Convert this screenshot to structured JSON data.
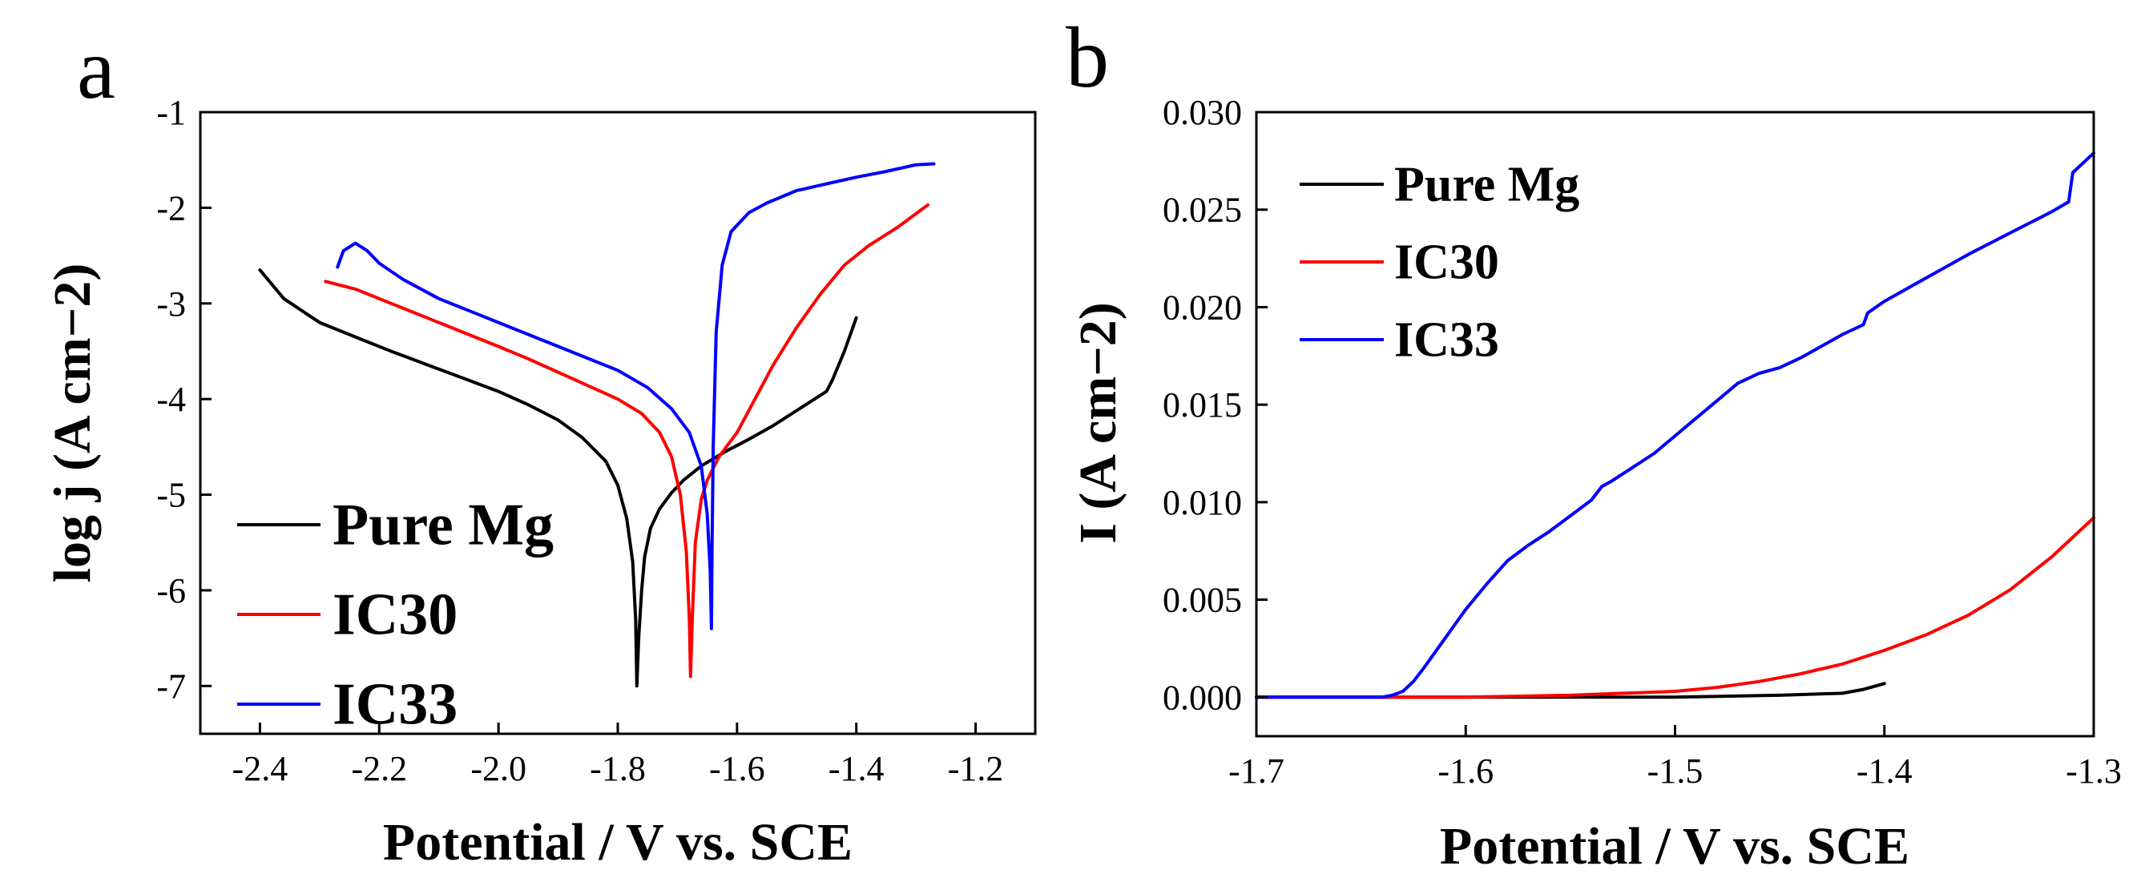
{
  "chart_data": [
    {
      "type": "line",
      "panel_label": "a",
      "xlabel": "Potential / V vs. SCE",
      "ylabel": "log j (A cm−2)",
      "xlim": [
        -2.5,
        -1.1
      ],
      "ylim": [
        -7.5,
        -1
      ],
      "xticks": [
        "-2.4",
        "-2.2",
        "-2.0",
        "-1.8",
        "-1.6",
        "-1.4",
        "-1.2"
      ],
      "yticks": [
        "-1",
        "-2",
        "-3",
        "-4",
        "-5",
        "-6",
        "-7"
      ],
      "legend_position": "bottom-left",
      "series": [
        {
          "name": "Pure Mg",
          "color": "#000000",
          "x": [
            -2.4,
            -2.36,
            -2.3,
            -2.24,
            -2.18,
            -2.12,
            -2.06,
            -2.0,
            -1.95,
            -1.9,
            -1.86,
            -1.82,
            -1.8,
            -1.785,
            -1.775,
            -1.77,
            -1.768,
            -1.765,
            -1.76,
            -1.755,
            -1.745,
            -1.73,
            -1.71,
            -1.69,
            -1.66,
            -1.62,
            -1.58,
            -1.54,
            -1.5,
            -1.45,
            -1.44,
            -1.42,
            -1.4
          ],
          "y": [
            -2.65,
            -2.95,
            -3.2,
            -3.35,
            -3.5,
            -3.64,
            -3.78,
            -3.92,
            -4.06,
            -4.22,
            -4.4,
            -4.65,
            -4.9,
            -5.25,
            -5.7,
            -6.3,
            -7.0,
            -6.5,
            -6.0,
            -5.65,
            -5.35,
            -5.15,
            -4.98,
            -4.85,
            -4.7,
            -4.55,
            -4.42,
            -4.28,
            -4.12,
            -3.92,
            -3.8,
            -3.5,
            -3.15
          ]
        },
        {
          "name": "IC30",
          "color": "#ff0000",
          "x": [
            -2.29,
            -2.24,
            -2.18,
            -2.12,
            -2.06,
            -2.0,
            -1.95,
            -1.9,
            -1.85,
            -1.8,
            -1.76,
            -1.73,
            -1.71,
            -1.695,
            -1.685,
            -1.68,
            -1.678,
            -1.675,
            -1.67,
            -1.66,
            -1.65,
            -1.63,
            -1.6,
            -1.57,
            -1.54,
            -1.5,
            -1.46,
            -1.42,
            -1.38,
            -1.33,
            -1.28
          ],
          "y": [
            -2.77,
            -2.85,
            -3.0,
            -3.15,
            -3.3,
            -3.45,
            -3.58,
            -3.72,
            -3.86,
            -4.0,
            -4.15,
            -4.35,
            -4.6,
            -5.0,
            -5.6,
            -6.3,
            -6.9,
            -6.3,
            -5.5,
            -5.05,
            -4.85,
            -4.6,
            -4.35,
            -4.0,
            -3.65,
            -3.25,
            -2.9,
            -2.6,
            -2.4,
            -2.2,
            -1.97
          ]
        },
        {
          "name": "IC33",
          "color": "#0000ff",
          "x": [
            -2.27,
            -2.26,
            -2.24,
            -2.22,
            -2.2,
            -2.16,
            -2.1,
            -2.04,
            -1.98,
            -1.92,
            -1.86,
            -1.8,
            -1.75,
            -1.71,
            -1.68,
            -1.66,
            -1.65,
            -1.645,
            -1.643,
            -1.642,
            -1.64,
            -1.635,
            -1.625,
            -1.61,
            -1.58,
            -1.55,
            -1.5,
            -1.45,
            -1.4,
            -1.35,
            -1.3,
            -1.27
          ],
          "y": [
            -2.62,
            -2.45,
            -2.37,
            -2.45,
            -2.58,
            -2.75,
            -2.95,
            -3.1,
            -3.25,
            -3.4,
            -3.55,
            -3.7,
            -3.88,
            -4.1,
            -4.35,
            -4.7,
            -5.2,
            -5.8,
            -6.4,
            -5.6,
            -4.5,
            -3.3,
            -2.6,
            -2.25,
            -2.05,
            -1.95,
            -1.82,
            -1.75,
            -1.68,
            -1.62,
            -1.55,
            -1.54
          ]
        }
      ]
    },
    {
      "type": "line",
      "panel_label": "b",
      "xlabel": "Potential / V vs. SCE",
      "ylabel": "I (A cm−2)",
      "xlim": [
        -1.7,
        -1.3
      ],
      "ylim": [
        -0.002,
        0.03
      ],
      "xticks": [
        "-1.7",
        "-1.6",
        "-1.5",
        "-1.4",
        "-1.3"
      ],
      "yticks": [
        "0.000",
        "0.005",
        "0.010",
        "0.015",
        "0.020",
        "0.025",
        "0.030"
      ],
      "legend_position": "top-left",
      "series": [
        {
          "name": "Pure Mg",
          "color": "#000000",
          "x": [
            -1.7,
            -1.65,
            -1.6,
            -1.55,
            -1.5,
            -1.45,
            -1.42,
            -1.41,
            -1.4
          ],
          "y": [
            0.0,
            0.0,
            0.0,
            0.0,
            0.0,
            0.0001,
            0.0002,
            0.0004,
            0.0007
          ]
        },
        {
          "name": "IC30",
          "color": "#ff0000",
          "x": [
            -1.7,
            -1.6,
            -1.55,
            -1.5,
            -1.48,
            -1.46,
            -1.44,
            -1.42,
            -1.4,
            -1.38,
            -1.36,
            -1.34,
            -1.32,
            -1.3
          ],
          "y": [
            0.0,
            0.0,
            0.0001,
            0.0003,
            0.0005,
            0.0008,
            0.0012,
            0.0017,
            0.0024,
            0.0032,
            0.0042,
            0.0055,
            0.0072,
            0.0092
          ]
        },
        {
          "name": "IC33",
          "color": "#0000ff",
          "x": [
            -1.7,
            -1.64,
            -1.635,
            -1.63,
            -1.625,
            -1.62,
            -1.61,
            -1.6,
            -1.59,
            -1.58,
            -1.57,
            -1.56,
            -1.55,
            -1.54,
            -1.535,
            -1.53,
            -1.52,
            -1.51,
            -1.5,
            -1.49,
            -1.48,
            -1.47,
            -1.46,
            -1.45,
            -1.44,
            -1.43,
            -1.42,
            -1.41,
            -1.408,
            -1.4,
            -1.38,
            -1.36,
            -1.34,
            -1.32,
            -1.312,
            -1.31,
            -1.3
          ],
          "y": [
            0.0,
            0.0,
            0.0001,
            0.0003,
            0.0008,
            0.0015,
            0.003,
            0.0045,
            0.0058,
            0.007,
            0.0078,
            0.0085,
            0.0093,
            0.0101,
            0.0108,
            0.0111,
            0.0118,
            0.0125,
            0.0134,
            0.0143,
            0.0152,
            0.0161,
            0.0166,
            0.0169,
            0.0174,
            0.018,
            0.0186,
            0.0191,
            0.0197,
            0.0203,
            0.0215,
            0.0227,
            0.0238,
            0.0249,
            0.0254,
            0.0269,
            0.0279
          ]
        }
      ]
    }
  ]
}
